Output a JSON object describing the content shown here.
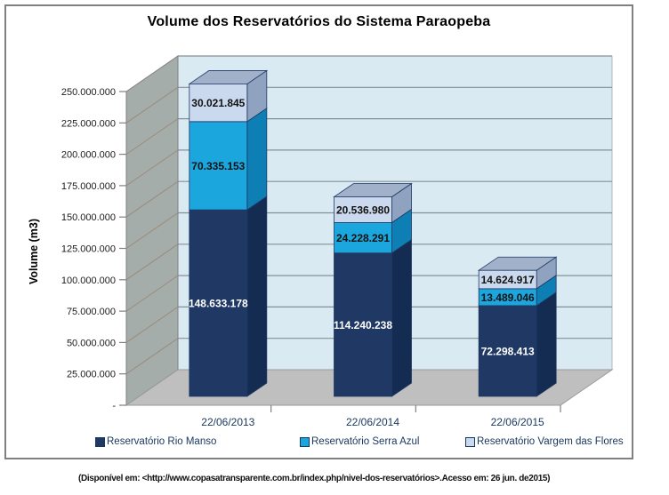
{
  "title": "Volume dos Reservatórios do Sistema Paraopeba",
  "y_axis_title": "Volume (m3)",
  "citation": "(Disponível em: <http://www.copasatransparente.com.br/index.php/nivel-dos-reservatórios>.Acesso em: 26  jun. de2015)",
  "legend": {
    "items": [
      {
        "label": "Reservatório Rio Manso",
        "color": "#1F3864"
      },
      {
        "label": "Reservatório Serra Azul",
        "color": "#1BA6DE"
      },
      {
        "label": "Reservatório Vargem das Flores",
        "color": "#CBD9EE"
      }
    ]
  },
  "chart_data": {
    "type": "bar",
    "subtype": "3d-stacked-column",
    "title": "Volume dos Reservatórios do Sistema Paraopeba",
    "xlabel": "",
    "ylabel": "Volume (m3)",
    "ylim": [
      0,
      250000000
    ],
    "y_tick_interval": 25000000,
    "y_tick_labels": [
      "-",
      "25.000.000",
      "50.000.000",
      "75.000.000",
      "100.000.000",
      "125.000.000",
      "150.000.000",
      "175.000.000",
      "200.000.000",
      "225.000.000",
      "250.000.000"
    ],
    "grid": true,
    "legend_position": "bottom",
    "categories": [
      "22/06/2013",
      "22/06/2014",
      "22/06/2015"
    ],
    "series": [
      {
        "name": "Reservatório Rio Manso",
        "values": [
          148633178,
          114240238,
          72298413
        ],
        "labels": [
          "148.633.178",
          "114.240.238",
          "72.298.413"
        ],
        "color": "#1F3864",
        "side_color": "#142C51",
        "top_color": "#3A5480",
        "label_color": "#FFFFFF"
      },
      {
        "name": "Reservatório Serra Azul",
        "values": [
          70335153,
          24228291,
          13489046
        ],
        "labels": [
          "70.335.153",
          "24.228.291",
          "13.489.046"
        ],
        "color": "#1BA6DE",
        "side_color": "#0E7FB5",
        "top_color": "#57BDE8",
        "label_color": "#111111"
      },
      {
        "name": "Reservatório Vargem das Flores",
        "values": [
          30021845,
          20536980,
          14624917
        ],
        "labels": [
          "30.021.845",
          "20.536.980",
          "14.624.917"
        ],
        "color": "#CBD9EE",
        "side_color": "#8FA2C0",
        "top_color": "#A2B1CA",
        "label_color": "#111111"
      }
    ],
    "colors": {
      "back_wall": "#DAEAF3",
      "left_wall": "#A4ADA9",
      "floor": "#BFBFBF",
      "back_grid": "#849099",
      "wall_grid": "#9A8B7D",
      "axis": "#808080",
      "bar_outline": "#1F3864",
      "category_label": "#17375E",
      "legend_text": "#17375E"
    }
  }
}
